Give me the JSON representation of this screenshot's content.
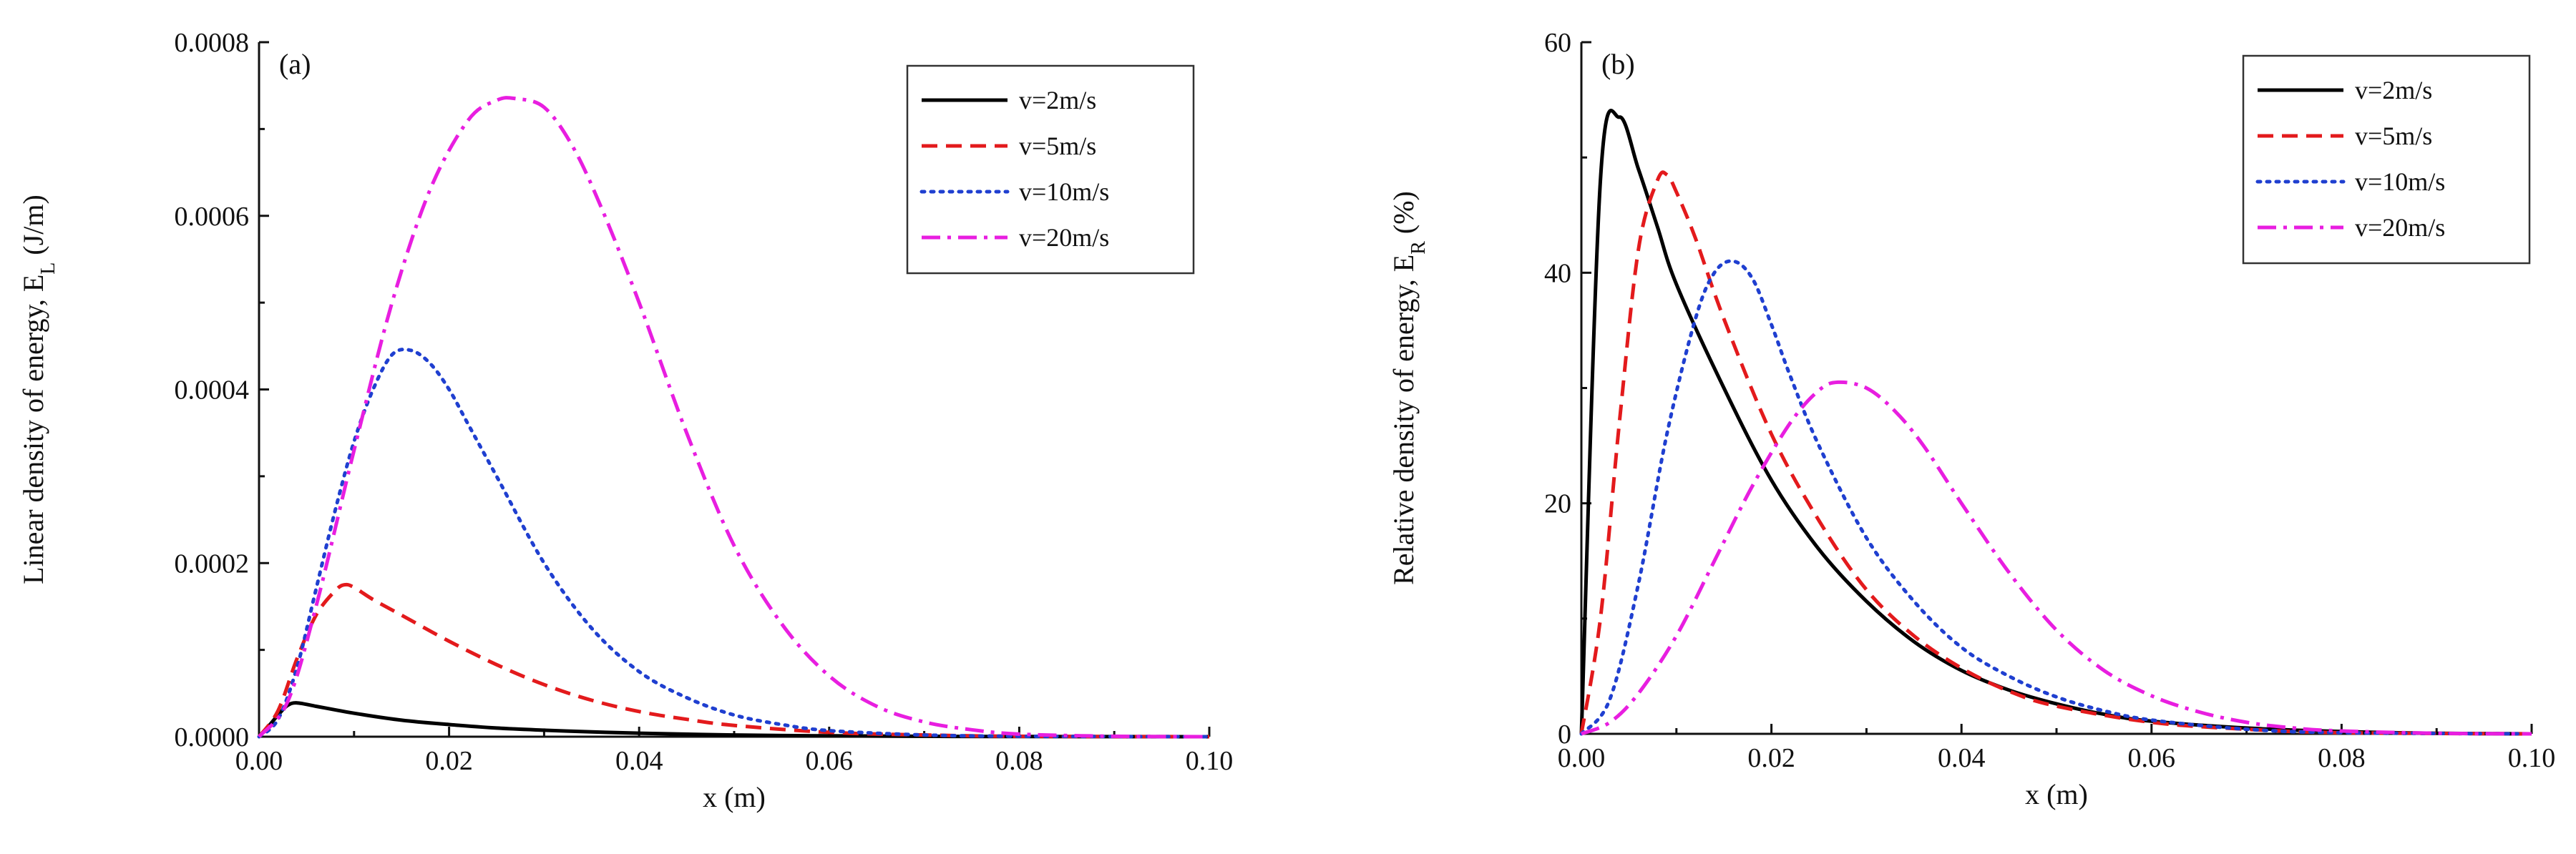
{
  "chart_data": [
    {
      "type": "line",
      "panel": "(a)",
      "title": "",
      "xlabel": "x (m)",
      "ylabel": "Linear density of energy, E",
      "ylabel_sub": "L",
      "ylabel_unit": " (J/m)",
      "xlim": [
        0,
        0.1
      ],
      "ylim": [
        0,
        0.0008
      ],
      "xticks": [
        "0.00",
        "0.02",
        "0.04",
        "0.06",
        "0.08",
        "0.10"
      ],
      "yticks": [
        "0.0000",
        "0.0002",
        "0.0004",
        "0.0006",
        "0.0008"
      ],
      "legend_position": "top-right",
      "grid": false,
      "series": [
        {
          "name": "v=2m/s",
          "color": "#000000",
          "dash": "solid",
          "x": [
            0,
            0.001,
            0.002,
            0.003,
            0.004,
            0.006,
            0.008,
            0.01,
            0.015,
            0.02,
            0.025,
            0.03,
            0.035,
            0.04,
            0.05,
            0.06,
            0.07,
            0.08,
            0.1
          ],
          "y": [
            0,
            1.2e-05,
            2.5e-05,
            3.6e-05,
            3.9e-05,
            3.5e-05,
            3.1e-05,
            2.7e-05,
            1.9e-05,
            1.4e-05,
            1e-05,
            7.5e-06,
            5.5e-06,
            4e-06,
            2e-06,
            1e-06,
            5e-07,
            2e-07,
            0
          ]
        },
        {
          "name": "v=5m/s",
          "color": "#e31a1c",
          "dash": "dashed",
          "x": [
            0,
            0.002,
            0.004,
            0.006,
            0.008,
            0.009,
            0.01,
            0.012,
            0.015,
            0.02,
            0.025,
            0.03,
            0.035,
            0.04,
            0.045,
            0.05,
            0.06,
            0.07,
            0.08,
            0.1
          ],
          "y": [
            0,
            3e-05,
            9e-05,
            0.00014,
            0.000168,
            0.000175,
            0.000172,
            0.000158,
            0.00014,
            0.00011,
            8.3e-05,
            6e-05,
            4.2e-05,
            2.9e-05,
            2e-05,
            1.3e-05,
            5e-06,
            2e-06,
            5e-07,
            0
          ]
        },
        {
          "name": "v=10m/s",
          "color": "#1f3fd0",
          "dash": "dotted",
          "x": [
            0,
            0.002,
            0.004,
            0.006,
            0.008,
            0.01,
            0.012,
            0.014,
            0.016,
            0.018,
            0.02,
            0.022,
            0.025,
            0.03,
            0.035,
            0.04,
            0.045,
            0.05,
            0.055,
            0.06,
            0.07,
            0.08,
            0.1
          ],
          "y": [
            0,
            2e-05,
            8e-05,
            0.00017,
            0.00026,
            0.00034,
            0.0004,
            0.00044,
            0.000445,
            0.00043,
            0.0004,
            0.00036,
            0.0003,
            0.0002,
            0.000125,
            7.5e-05,
            4.5e-05,
            2.5e-05,
            1.4e-05,
            7e-06,
            2e-06,
            5e-07,
            0
          ]
        },
        {
          "name": "v=20m/s",
          "color": "#e81ee0",
          "dash": "dashdot",
          "x": [
            0,
            0.003,
            0.006,
            0.01,
            0.014,
            0.018,
            0.022,
            0.025,
            0.027,
            0.03,
            0.033,
            0.036,
            0.04,
            0.045,
            0.05,
            0.055,
            0.06,
            0.065,
            0.07,
            0.075,
            0.08,
            0.09,
            0.1
          ],
          "y": [
            0,
            4e-05,
            0.00015,
            0.00033,
            0.0005,
            0.00063,
            0.00071,
            0.000733,
            0.000735,
            0.000725,
            0.00068,
            0.00061,
            0.0005,
            0.00035,
            0.00022,
            0.00013,
            7e-05,
            3.5e-05,
            1.7e-05,
            8e-06,
            3e-06,
            5e-07,
            0
          ]
        }
      ]
    },
    {
      "type": "line",
      "panel": "(b)",
      "title": "",
      "xlabel": "x (m)",
      "ylabel": "Relative density of energy, E",
      "ylabel_sub": "R",
      "ylabel_unit": " (%)",
      "xlim": [
        0,
        0.1
      ],
      "ylim": [
        0,
        60
      ],
      "xticks": [
        "0.00",
        "0.02",
        "0.04",
        "0.06",
        "0.08",
        "0.10"
      ],
      "yticks": [
        "0",
        "20",
        "40",
        "60"
      ],
      "legend_position": "top-right",
      "grid": false,
      "series": [
        {
          "name": "v=2m/s",
          "color": "#000000",
          "dash": "solid",
          "x": [
            0,
            0.002,
            0.004,
            0.006,
            0.008,
            0.01,
            0.015,
            0.02,
            0.025,
            0.03,
            0.035,
            0.04,
            0.045,
            0.05,
            0.055,
            0.06,
            0.07,
            0.08,
            0.09,
            0.1
          ],
          "y": [
            0,
            48,
            53.5,
            49,
            44,
            39,
            30,
            22,
            16,
            11.5,
            8,
            5.5,
            3.8,
            2.6,
            1.7,
            1.1,
            0.5,
            0.2,
            0.05,
            0
          ]
        },
        {
          "name": "v=5m/s",
          "color": "#e31a1c",
          "dash": "dashed",
          "x": [
            0,
            0.002,
            0.004,
            0.006,
            0.008,
            0.009,
            0.01,
            0.012,
            0.015,
            0.02,
            0.025,
            0.03,
            0.035,
            0.04,
            0.045,
            0.05,
            0.06,
            0.07,
            0.08,
            0.1
          ],
          "y": [
            0,
            10,
            27,
            42,
            48,
            48.5,
            47,
            43,
            36,
            26,
            18.5,
            12.5,
            8.5,
            5.7,
            3.7,
            2.4,
            1,
            0.4,
            0.1,
            0
          ]
        },
        {
          "name": "v=10m/s",
          "color": "#1f3fd0",
          "dash": "dotted",
          "x": [
            0,
            0.003,
            0.006,
            0.009,
            0.012,
            0.014,
            0.016,
            0.018,
            0.02,
            0.022,
            0.025,
            0.03,
            0.035,
            0.04,
            0.045,
            0.05,
            0.055,
            0.06,
            0.07,
            0.08,
            0.1
          ],
          "y": [
            0,
            3,
            13,
            26,
            36,
            40,
            41,
            39.5,
            35.5,
            31,
            25,
            17,
            11.5,
            7.5,
            5,
            3.2,
            2,
            1.2,
            0.4,
            0.1,
            0
          ]
        },
        {
          "name": "v=20m/s",
          "color": "#e81ee0",
          "dash": "dashdot",
          "x": [
            0,
            0.003,
            0.006,
            0.01,
            0.014,
            0.018,
            0.022,
            0.025,
            0.027,
            0.03,
            0.033,
            0.036,
            0.04,
            0.045,
            0.05,
            0.055,
            0.06,
            0.065,
            0.07,
            0.075,
            0.08,
            0.09,
            0.1
          ],
          "y": [
            0,
            1,
            3.5,
            8.5,
            15,
            21.5,
            27,
            29.8,
            30.5,
            30,
            28,
            25,
            20,
            14,
            9,
            5.5,
            3.3,
            1.9,
            1,
            0.5,
            0.25,
            0.05,
            0
          ]
        }
      ]
    }
  ]
}
